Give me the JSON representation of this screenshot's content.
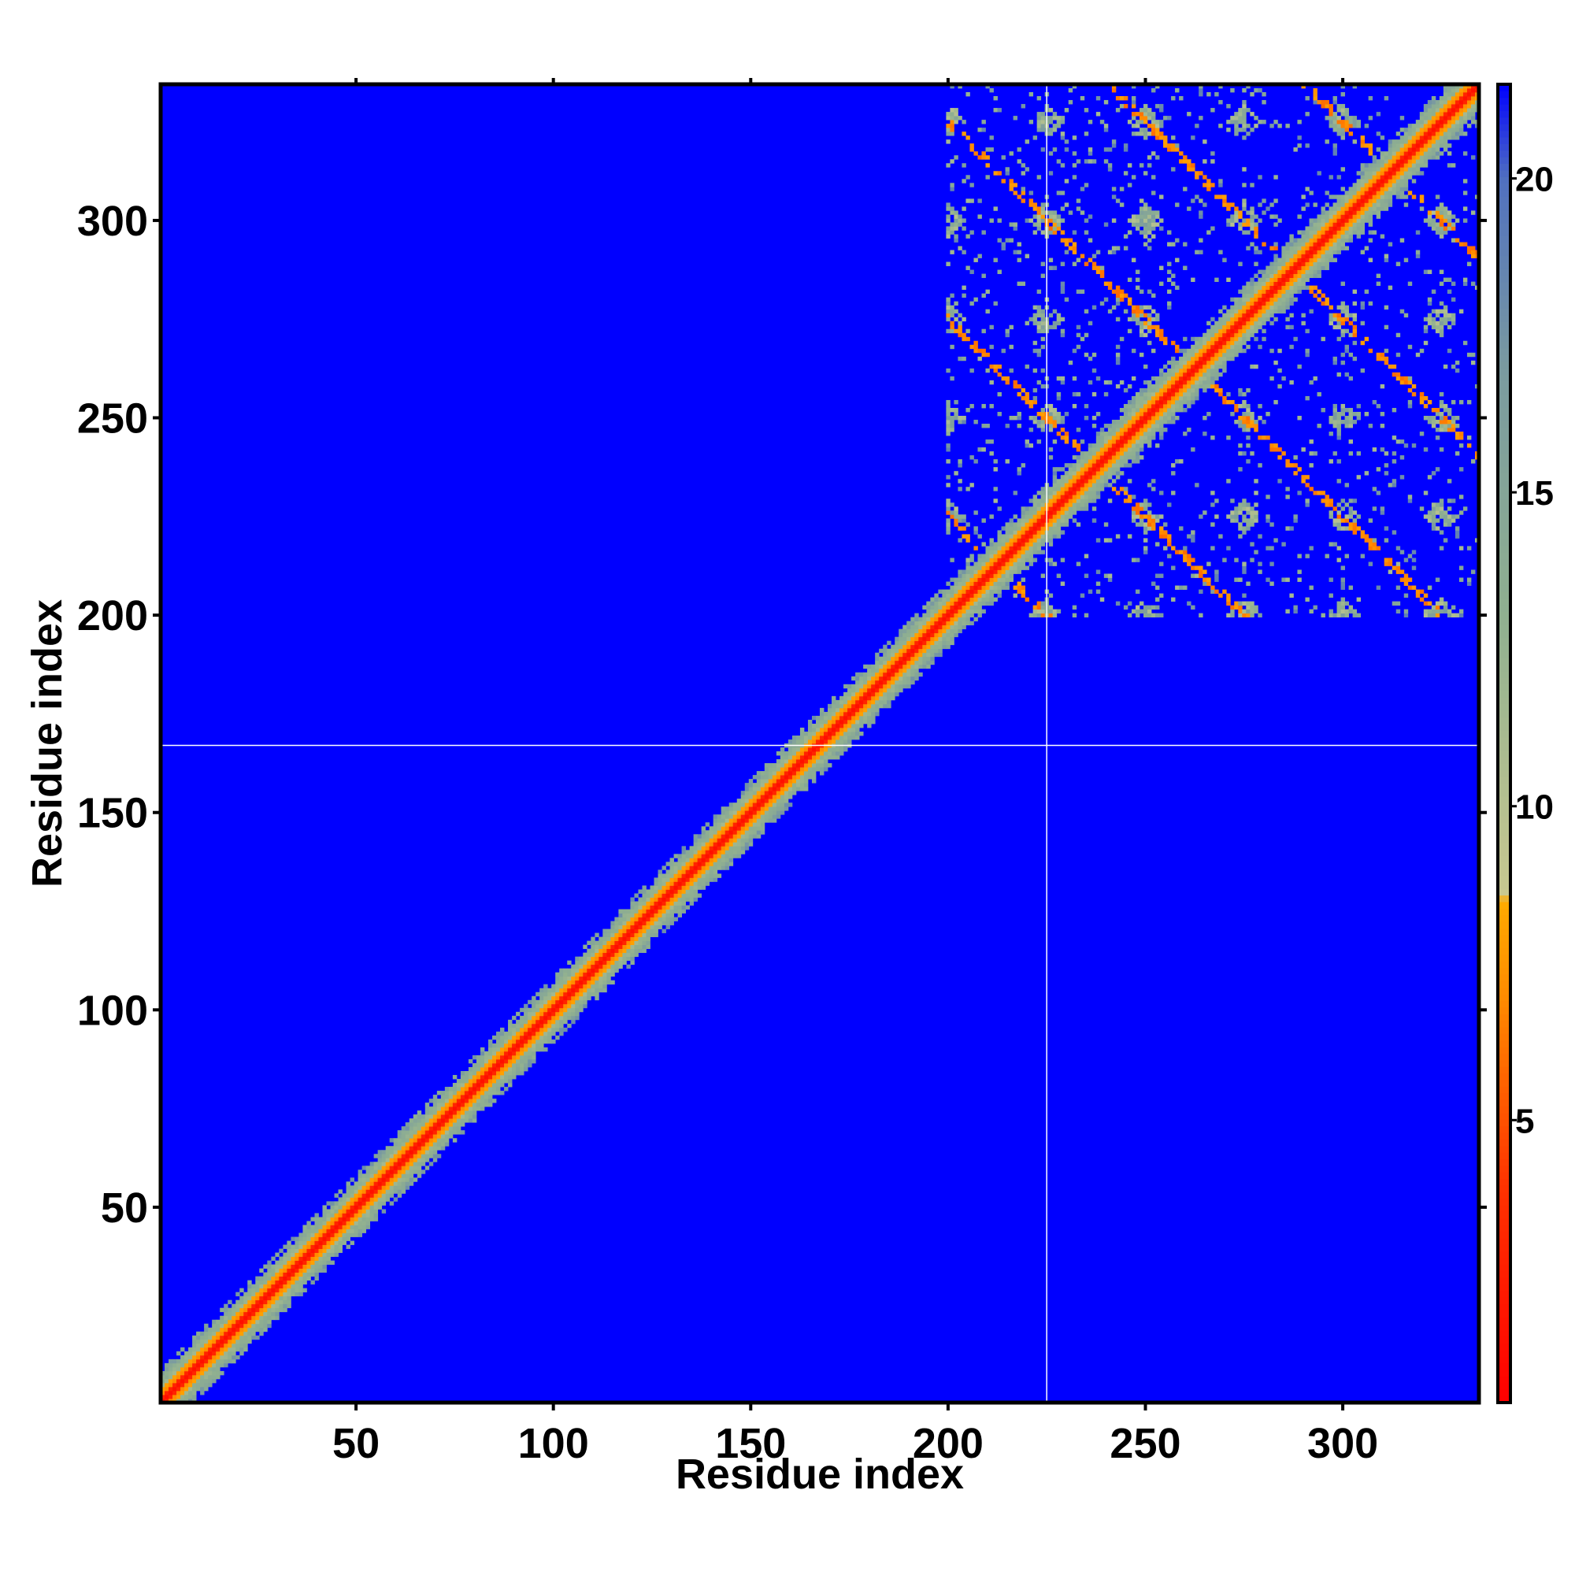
{
  "chart_data": {
    "type": "heatmap",
    "title": "",
    "xlabel": "Residue index",
    "ylabel": "Residue index",
    "xlim": [
      1,
      334
    ],
    "ylim": [
      1,
      334
    ],
    "x_ticks": [
      50,
      100,
      150,
      200,
      250,
      300
    ],
    "y_ticks": [
      50,
      100,
      150,
      200,
      250,
      300
    ],
    "colorbar": {
      "ticks": [
        5,
        10,
        15,
        20
      ],
      "range": [
        0.5,
        21.5
      ],
      "stops": [
        {
          "value": 0.5,
          "color": "#ff0000"
        },
        {
          "value": 4.0,
          "color": "#ff3300"
        },
        {
          "value": 7.0,
          "color": "#ff8c00"
        },
        {
          "value": 8.5,
          "color": "#ffaa00"
        },
        {
          "value": 8.6,
          "color": "#c8c890"
        },
        {
          "value": 13.0,
          "color": "#90b090"
        },
        {
          "value": 17.0,
          "color": "#7a9aa0"
        },
        {
          "value": 20.0,
          "color": "#5070c0"
        },
        {
          "value": 21.5,
          "color": "#0000ff"
        }
      ]
    },
    "background_value": 21.5,
    "background_color": "#0000ff",
    "reference_lines": {
      "x": 225,
      "y": 167,
      "color": "#ffffff"
    },
    "features": [
      {
        "kind": "diagonal",
        "from": 1,
        "to": 334,
        "core_value": 1.5,
        "band_value": 11
      },
      {
        "kind": "contact_block",
        "from": 200,
        "to": 334,
        "band_value": 11
      }
    ]
  }
}
